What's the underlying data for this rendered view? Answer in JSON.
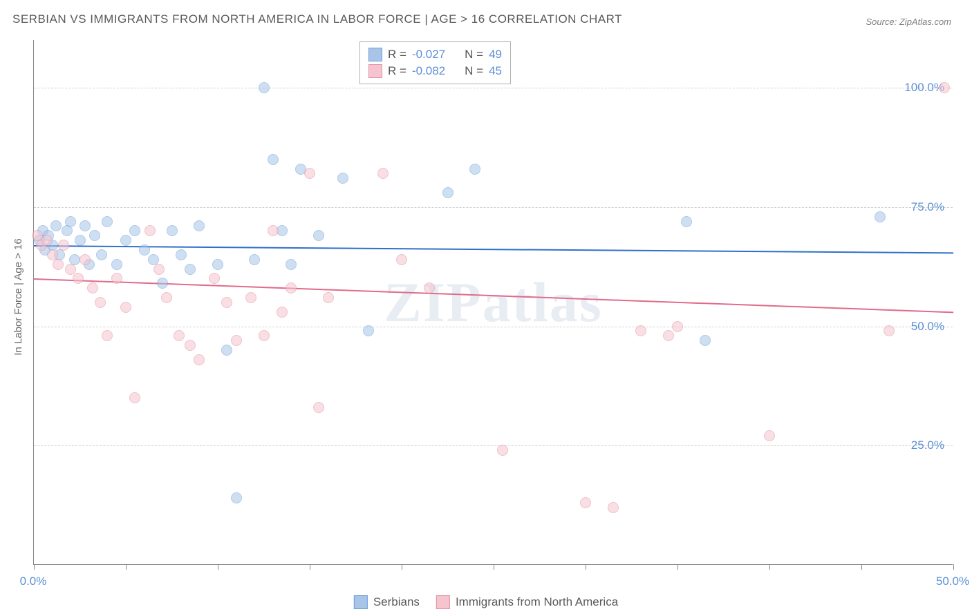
{
  "title": "SERBIAN VS IMMIGRANTS FROM NORTH AMERICA IN LABOR FORCE | AGE > 16 CORRELATION CHART",
  "source": "Source: ZipAtlas.com",
  "watermark": "ZIPatlas",
  "yaxis_title": "In Labor Force | Age > 16",
  "chart": {
    "type": "scatter",
    "xlim": [
      0,
      50
    ],
    "ylim": [
      0,
      110
    ],
    "background_color": "#ffffff",
    "grid_color": "#d0d0d0",
    "axis_color": "#888888",
    "gridlines_y": [
      25,
      50,
      75,
      100
    ],
    "ytick_labels": [
      "25.0%",
      "50.0%",
      "75.0%",
      "100.0%"
    ],
    "xticks": [
      0,
      5,
      10,
      15,
      20,
      25,
      30,
      35,
      40,
      45,
      50
    ],
    "xtick_labels": {
      "0": "0.0%",
      "50": "50.0%"
    },
    "point_radius": 8,
    "point_opacity": 0.55,
    "label_color": "#5b8fd6",
    "label_fontsize": 17
  },
  "series": [
    {
      "name": "Serbians",
      "fill_color": "#a8c5e8",
      "stroke_color": "#6a9edb",
      "line_color": "#2e6fc9",
      "R": "-0.027",
      "N": "49",
      "trend": {
        "y_at_x0": 67,
        "y_at_xmax": 65.5
      },
      "points": [
        [
          0.3,
          68
        ],
        [
          0.5,
          70
        ],
        [
          0.6,
          66
        ],
        [
          0.8,
          69
        ],
        [
          1.0,
          67
        ],
        [
          1.2,
          71
        ],
        [
          1.4,
          65
        ],
        [
          1.8,
          70
        ],
        [
          2.0,
          72
        ],
        [
          2.2,
          64
        ],
        [
          2.5,
          68
        ],
        [
          2.8,
          71
        ],
        [
          3.0,
          63
        ],
        [
          3.3,
          69
        ],
        [
          3.7,
          65
        ],
        [
          4.0,
          72
        ],
        [
          4.5,
          63
        ],
        [
          5.0,
          68
        ],
        [
          5.5,
          70
        ],
        [
          6.0,
          66
        ],
        [
          6.5,
          64
        ],
        [
          7.0,
          59
        ],
        [
          7.5,
          70
        ],
        [
          8.0,
          65
        ],
        [
          8.5,
          62
        ],
        [
          9.0,
          71
        ],
        [
          10.0,
          63
        ],
        [
          10.5,
          45
        ],
        [
          11.0,
          14
        ],
        [
          12.0,
          64
        ],
        [
          12.5,
          100
        ],
        [
          13.0,
          85
        ],
        [
          13.5,
          70
        ],
        [
          14.0,
          63
        ],
        [
          14.5,
          83
        ],
        [
          15.5,
          69
        ],
        [
          16.8,
          81
        ],
        [
          18.2,
          49
        ],
        [
          22.5,
          78
        ],
        [
          24.0,
          83
        ],
        [
          35.5,
          72
        ],
        [
          36.5,
          47
        ],
        [
          46.0,
          73
        ]
      ]
    },
    {
      "name": "Immigrants from North America",
      "fill_color": "#f5c4ce",
      "stroke_color": "#e38fa3",
      "line_color": "#e26a8a",
      "R": "-0.082",
      "N": "45",
      "trend": {
        "y_at_x0": 60,
        "y_at_xmax": 53
      },
      "points": [
        [
          0.2,
          69
        ],
        [
          0.4,
          67
        ],
        [
          0.7,
          68
        ],
        [
          1.0,
          65
        ],
        [
          1.3,
          63
        ],
        [
          1.6,
          67
        ],
        [
          2.0,
          62
        ],
        [
          2.4,
          60
        ],
        [
          2.8,
          64
        ],
        [
          3.2,
          58
        ],
        [
          3.6,
          55
        ],
        [
          4.0,
          48
        ],
        [
          4.5,
          60
        ],
        [
          5.0,
          54
        ],
        [
          5.5,
          35
        ],
        [
          6.3,
          70
        ],
        [
          6.8,
          62
        ],
        [
          7.2,
          56
        ],
        [
          7.9,
          48
        ],
        [
          8.5,
          46
        ],
        [
          9.0,
          43
        ],
        [
          9.8,
          60
        ],
        [
          10.5,
          55
        ],
        [
          11.0,
          47
        ],
        [
          11.8,
          56
        ],
        [
          12.5,
          48
        ],
        [
          13.0,
          70
        ],
        [
          13.5,
          53
        ],
        [
          14.0,
          58
        ],
        [
          15.0,
          82
        ],
        [
          15.5,
          33
        ],
        [
          16.0,
          56
        ],
        [
          19.0,
          82
        ],
        [
          20.0,
          64
        ],
        [
          21.5,
          58
        ],
        [
          25.5,
          24
        ],
        [
          30.0,
          13
        ],
        [
          31.5,
          12
        ],
        [
          33.0,
          49
        ],
        [
          34.5,
          48
        ],
        [
          35.0,
          50
        ],
        [
          40.0,
          27
        ],
        [
          46.5,
          49
        ],
        [
          49.5,
          100
        ]
      ]
    }
  ],
  "correlation_box": {
    "rows": [
      {
        "swatch_fill": "#a8c5e8",
        "swatch_border": "#6a9edb",
        "r_label": "R =",
        "r_val": "-0.027",
        "n_label": "N =",
        "n_val": "49"
      },
      {
        "swatch_fill": "#f5c4ce",
        "swatch_border": "#e38fa3",
        "r_label": "R =",
        "r_val": "-0.082",
        "n_label": "N =",
        "n_val": "45"
      }
    ]
  },
  "bottom_legend": [
    {
      "swatch_fill": "#a8c5e8",
      "swatch_border": "#6a9edb",
      "label": "Serbians"
    },
    {
      "swatch_fill": "#f5c4ce",
      "swatch_border": "#e38fa3",
      "label": "Immigrants from North America"
    }
  ]
}
